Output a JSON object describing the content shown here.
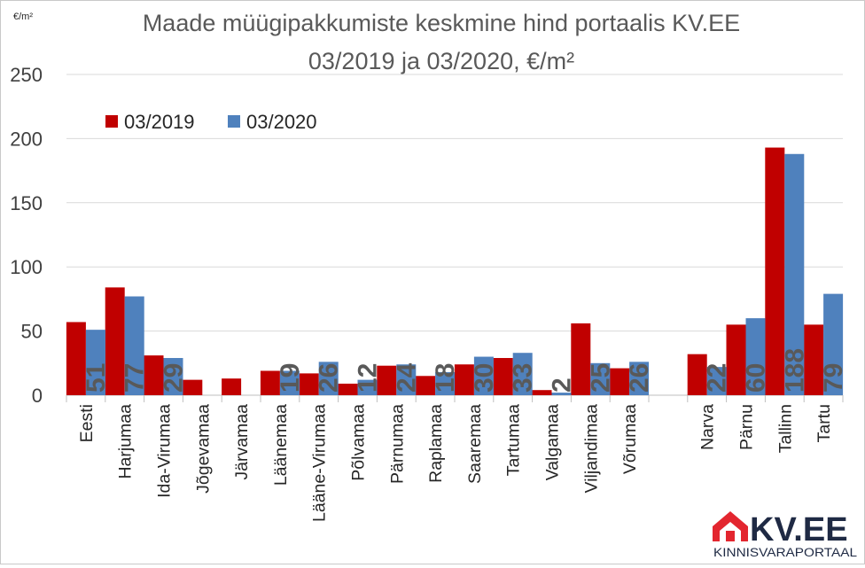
{
  "logo": {
    "brand": "KV.EE",
    "tagline": "KINNISVARAPORTAAL",
    "colors": {
      "red": "#e3262f",
      "navy": "#1f2a44"
    }
  },
  "chart_data": {
    "type": "bar",
    "title_lines": [
      "Maade müügipakkumiste keskmine hind portaalis KV.EE",
      "03/2019 ja 03/2020, €/m²"
    ],
    "unit_label": "€/m²",
    "ylim": [
      0,
      250
    ],
    "yticks": [
      0,
      50,
      100,
      150,
      200,
      250
    ],
    "grid": true,
    "legend_position": "top-left",
    "categories": [
      "Eesti",
      "Harjumaa",
      "Ida-Virumaa",
      "Jõgevamaa",
      "Järvamaa",
      "Läänemaa",
      "Lääne-Virumaa",
      "Põlvamaa",
      "Pärnumaa",
      "Raplamaa",
      "Saaremaa",
      "Tartumaa",
      "Valgamaa",
      "Viljandimaa",
      "Võrumaa",
      "",
      "Narva",
      "Pärnu",
      "Tallinn",
      "Tartu"
    ],
    "series": [
      {
        "name": "03/2019",
        "color": "#c00000",
        "values": [
          57,
          84,
          31,
          12,
          13,
          19,
          17,
          9,
          23,
          15,
          24,
          29,
          4,
          56,
          21,
          null,
          32,
          55,
          193,
          55
        ]
      },
      {
        "name": "03/2020",
        "color": "#4f81bd",
        "values": [
          51,
          77,
          29,
          null,
          null,
          19,
          26,
          12,
          24,
          18,
          30,
          33,
          2,
          25,
          26,
          null,
          22,
          60,
          188,
          79
        ],
        "data_labels": [
          "51",
          "77",
          "29",
          "",
          "",
          "19",
          "26",
          "12",
          "24",
          "18",
          "30",
          "33",
          "2",
          "25",
          "26",
          "",
          "22",
          "60",
          "188",
          "79"
        ]
      }
    ]
  }
}
